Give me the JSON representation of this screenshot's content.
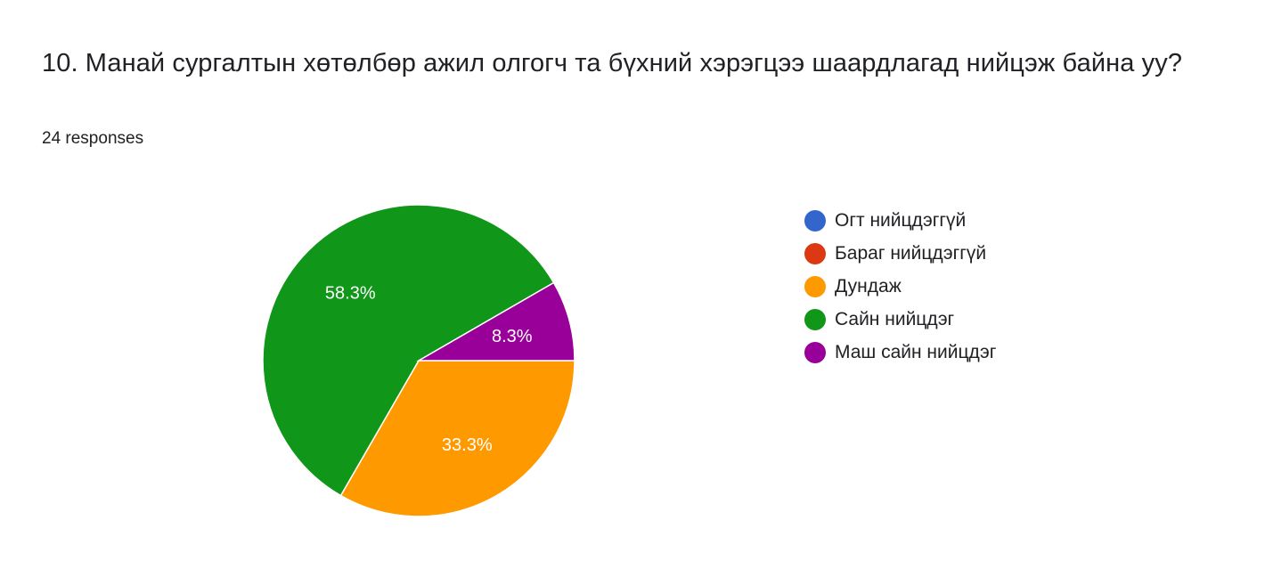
{
  "question": {
    "title": "10. Манай сургалтын хөтөлбөр ажил олгогч та бүхний хэрэгцээ шаардлагад нийцэж байна уу?",
    "responses": "24 responses"
  },
  "chart_data": {
    "type": "pie",
    "total_responses": 24,
    "slices": [
      {
        "label": "Огт нийцдэггүй",
        "value": 0,
        "percent": 0,
        "percent_label": "",
        "color": "#3366cc"
      },
      {
        "label": "Бараг нийцдэггүй",
        "value": 0,
        "percent": 0,
        "percent_label": "",
        "color": "#dc3912"
      },
      {
        "label": "Дундаж",
        "value": 8,
        "percent": 33.3,
        "percent_label": "33.3%",
        "color": "#ff9900"
      },
      {
        "label": "Сайн нийцдэг",
        "value": 14,
        "percent": 58.3,
        "percent_label": "58.3%",
        "color": "#109618"
      },
      {
        "label": "Маш сайн нийцдэг",
        "value": 2,
        "percent": 8.3,
        "percent_label": "8.3%",
        "color": "#990099"
      }
    ],
    "legend_position": "right"
  }
}
